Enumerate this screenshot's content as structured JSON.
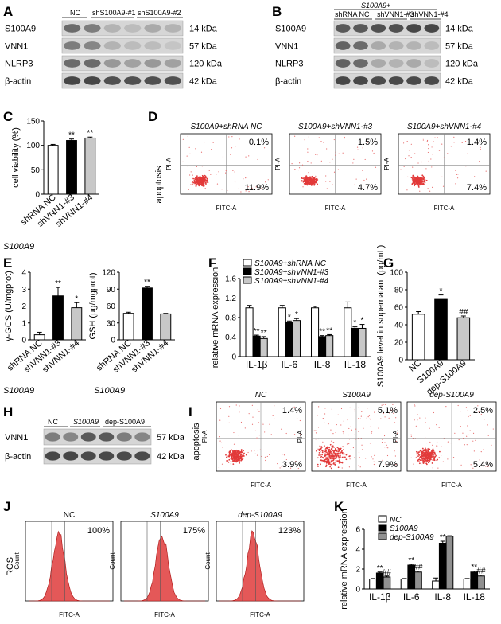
{
  "panels": {
    "A": {
      "letter": "A",
      "groups": [
        "NC",
        "shS100A9-#1",
        "shS100A9-#2"
      ],
      "rows": [
        {
          "protein": "S100A9",
          "size": "14 kDa"
        },
        {
          "protein": "VNN1",
          "size": "57 kDa"
        },
        {
          "protein": "NLRP3",
          "size": "120 kDa"
        },
        {
          "protein": "β-actin",
          "size": "42 kDa"
        }
      ]
    },
    "B": {
      "letter": "B",
      "header": "S100A9+",
      "groups": [
        "shRNA NC",
        "shVNN1-#3",
        "shVNN1-#4"
      ],
      "rows": [
        {
          "protein": "S100A9",
          "size": "14 kDa"
        },
        {
          "protein": "VNN1",
          "size": "57 kDa"
        },
        {
          "protein": "NLRP3",
          "size": "120 kDa"
        },
        {
          "protein": "β-actin",
          "size": "42 kDa"
        }
      ]
    },
    "C": {
      "letter": "C"
    },
    "D": {
      "letter": "D",
      "ylabel": "apoptosis",
      "xaxis": "FITC-A",
      "yaxis": "PI-A",
      "plots": [
        {
          "title": "S100A9+shRNA NC",
          "ur": "0.1%",
          "lr": "11.9%"
        },
        {
          "title": "S100A9+shVNN1-#3",
          "ur": "1.5%",
          "lr": "4.7%"
        },
        {
          "title": "S100A9+shVNN1-#4",
          "ur": "1.4%",
          "lr": "7.4%"
        }
      ]
    },
    "E": {
      "letter": "E"
    },
    "F": {
      "letter": "F"
    },
    "G": {
      "letter": "G"
    },
    "H": {
      "letter": "H",
      "groups": [
        "NC",
        "S100A9",
        "dep-S100A9"
      ],
      "rows": [
        {
          "protein": "VNN1",
          "size": "57 kDa"
        },
        {
          "protein": "β-actin",
          "size": "42 kDa"
        }
      ]
    },
    "I": {
      "letter": "I",
      "ylabel": "apoptosis",
      "xaxis": "FITC-A",
      "yaxis": "PI-A",
      "plots": [
        {
          "title": "NC",
          "ur": "1.4%",
          "lr": "3.9%"
        },
        {
          "title": "S100A9",
          "ur": "5.1%",
          "lr": "7.9%"
        },
        {
          "title": "dep-S100A9",
          "ur": "2.5%",
          "lr": "5.4%"
        }
      ]
    },
    "J": {
      "letter": "J",
      "ylabel": "ROS",
      "xaxis": "FITC-A",
      "yaxis": "Count",
      "plots": [
        {
          "title": "NC",
          "pct": "100%"
        },
        {
          "title": "S100A9",
          "pct": "175%"
        },
        {
          "title": "dep-S100A9",
          "pct": "123%"
        }
      ]
    },
    "K": {
      "letter": "K"
    }
  },
  "chart_data": [
    {
      "id": "C",
      "type": "bar",
      "ylabel": "cell viability (%)",
      "ylim": [
        0,
        150
      ],
      "yticks": [
        0,
        50,
        100,
        150
      ],
      "categories": [
        "shRNA NC",
        "shVNN1-#3",
        "shVNN1-#4"
      ],
      "values": [
        100,
        110,
        115
      ],
      "errors": [
        2,
        3,
        2
      ],
      "colors": [
        "#ffffff",
        "#000000",
        "#c8c8c8"
      ],
      "annotations": [
        "",
        "**",
        "**"
      ],
      "group_label": "S100A9"
    },
    {
      "id": "E1",
      "type": "bar",
      "ylabel": "γ-GCS (U/mgprot)",
      "ylim": [
        0,
        4
      ],
      "yticks": [
        0,
        1,
        2,
        3,
        4
      ],
      "categories": [
        "shRNA NC",
        "shVNN1-#3",
        "shVNN1-#4"
      ],
      "values": [
        0.3,
        2.6,
        1.9
      ],
      "errors": [
        0.15,
        0.5,
        0.3
      ],
      "colors": [
        "#ffffff",
        "#000000",
        "#c8c8c8"
      ],
      "annotations": [
        "",
        "**",
        "*"
      ],
      "group_label": "S100A9"
    },
    {
      "id": "E2",
      "type": "bar",
      "ylabel": "GSH (μg/mgprot)",
      "ylim": [
        0,
        120
      ],
      "yticks": [
        0,
        30,
        60,
        90,
        120
      ],
      "categories": [
        "shRNA NC",
        "shVNN1-#3",
        "shVNN1-#4"
      ],
      "values": [
        47,
        92,
        46
      ],
      "errors": [
        2,
        3,
        1
      ],
      "colors": [
        "#ffffff",
        "#000000",
        "#c8c8c8"
      ],
      "annotations": [
        "",
        "**",
        ""
      ],
      "group_label": "S100A9"
    },
    {
      "id": "F",
      "type": "bar",
      "ylabel": "relative mRNA expression",
      "ylim": [
        0,
        1.6
      ],
      "yticks": [
        0.0,
        0.4,
        0.8,
        1.2,
        1.6
      ],
      "categories": [
        "IL-1β",
        "IL-6",
        "IL-8",
        "IL-18"
      ],
      "series": [
        {
          "name": "S100A9+shRNA NC",
          "color": "#ffffff",
          "values": [
            1.0,
            1.0,
            1.0,
            1.0
          ],
          "errors": [
            0.05,
            0.05,
            0.03,
            0.12
          ],
          "annotations": [
            "",
            "",
            "",
            ""
          ]
        },
        {
          "name": "S100A9+shVNN1-#3",
          "color": "#000000",
          "values": [
            0.42,
            0.7,
            0.41,
            0.58
          ],
          "errors": [
            0.02,
            0.03,
            0.02,
            0.03
          ],
          "annotations": [
            "**",
            "*",
            "**",
            "*"
          ]
        },
        {
          "name": "S100A9+shVNN1-#4",
          "color": "#c8c8c8",
          "values": [
            0.37,
            0.74,
            0.43,
            0.58
          ],
          "errors": [
            0.04,
            0.04,
            0.02,
            0.08
          ],
          "annotations": [
            "**",
            "*",
            "**",
            "*"
          ]
        }
      ]
    },
    {
      "id": "G",
      "type": "bar",
      "ylabel": "S100A9 level in supernatant (pg/mL)",
      "ylim": [
        0,
        100
      ],
      "yticks": [
        0,
        20,
        40,
        60,
        80,
        100
      ],
      "categories": [
        "NC",
        "S100A9",
        "dep-S100A9"
      ],
      "values": [
        52,
        69,
        48
      ],
      "errors": [
        3,
        5,
        2
      ],
      "colors": [
        "#ffffff",
        "#000000",
        "#c8c8c8"
      ],
      "annotations": [
        "",
        "*",
        "##"
      ]
    },
    {
      "id": "K",
      "type": "bar",
      "ylabel": "relative mRNA expression",
      "ylim": [
        0,
        6
      ],
      "yticks": [
        0,
        2,
        4,
        6
      ],
      "categories": [
        "IL-1β",
        "IL-6",
        "IL-8",
        "IL-18"
      ],
      "series": [
        {
          "name": "NC",
          "color": "#ffffff",
          "values": [
            1.0,
            1.0,
            0.8,
            1.0
          ],
          "errors": [
            0.05,
            0.05,
            0.3,
            0.05
          ],
          "annotations": [
            "",
            "",
            "",
            ""
          ]
        },
        {
          "name": "S100A9",
          "color": "#000000",
          "values": [
            1.6,
            2.4,
            4.6,
            1.7
          ],
          "errors": [
            0.1,
            0.1,
            0.2,
            0.1
          ],
          "annotations": [
            "**",
            "**",
            "**",
            "**"
          ]
        },
        {
          "name": "dep-S100A9",
          "color": "#909090",
          "values": [
            1.2,
            1.7,
            5.3,
            1.3
          ],
          "errors": [
            0.1,
            0.1,
            0.05,
            0.1
          ],
          "annotations": [
            "##",
            "##",
            "",
            "##"
          ]
        }
      ]
    }
  ]
}
